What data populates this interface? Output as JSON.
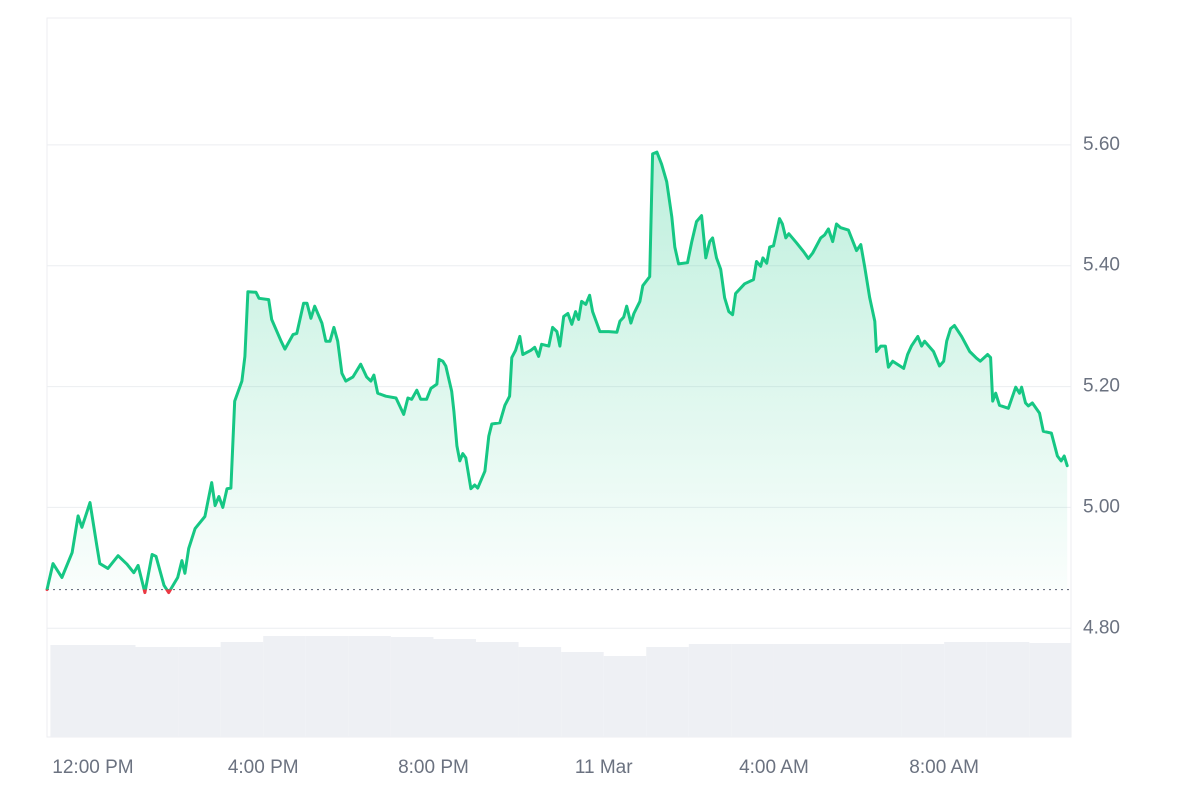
{
  "chart_data": {
    "type": "line",
    "color": "#16c784",
    "below_color": "#ea3943",
    "baseline": 4.864,
    "grid": true,
    "xlim": [
      -1.08,
      22.98
    ],
    "xticks": [
      {
        "value": 0,
        "label": "12:00 PM"
      },
      {
        "value": 4,
        "label": "4:00 PM"
      },
      {
        "value": 8,
        "label": "8:00 PM"
      },
      {
        "value": 12,
        "label": "11 Mar"
      },
      {
        "value": 16,
        "label": "4:00 AM"
      },
      {
        "value": 20,
        "label": "8:00 AM"
      }
    ],
    "ylim": [
      4.62,
      5.81
    ],
    "yticks": [
      {
        "value": 4.8,
        "label": "4.80"
      },
      {
        "value": 5.0,
        "label": "5.00"
      },
      {
        "value": 5.2,
        "label": "5.20"
      },
      {
        "value": 5.4,
        "label": "5.40"
      },
      {
        "value": 5.6,
        "label": "5.60"
      }
    ],
    "x": [
      -1.08,
      -0.94,
      -0.73,
      -0.49,
      -0.35,
      -0.26,
      -0.07,
      0.09,
      0.16,
      0.35,
      0.59,
      0.8,
      0.96,
      1.06,
      1.22,
      1.39,
      1.48,
      1.67,
      1.78,
      1.99,
      2.09,
      2.16,
      2.25,
      2.4,
      2.63,
      2.79,
      2.87,
      2.96,
      3.05,
      3.15,
      3.24,
      3.33,
      3.5,
      3.57,
      3.64,
      3.83,
      3.9,
      4.13,
      4.2,
      4.42,
      4.51,
      4.7,
      4.79,
      4.95,
      5.03,
      5.12,
      5.21,
      5.38,
      5.47,
      5.57,
      5.66,
      5.75,
      5.85,
      5.94,
      6.11,
      6.29,
      6.43,
      6.53,
      6.6,
      6.69,
      6.88,
      7.12,
      7.3,
      7.4,
      7.49,
      7.61,
      7.7,
      7.84,
      7.94,
      8.08,
      8.13,
      8.22,
      8.29,
      8.43,
      8.48,
      8.55,
      8.62,
      8.69,
      8.76,
      8.88,
      8.97,
      9.04,
      9.21,
      9.3,
      9.37,
      9.56,
      9.68,
      9.79,
      9.84,
      9.93,
      10.03,
      10.1,
      10.29,
      10.38,
      10.47,
      10.54,
      10.71,
      10.8,
      10.9,
      10.97,
      11.06,
      11.16,
      11.25,
      11.34,
      11.41,
      11.48,
      11.58,
      11.67,
      11.74,
      11.91,
      12.12,
      12.31,
      12.38,
      12.47,
      12.54,
      12.64,
      12.71,
      12.85,
      12.92,
      13.08,
      13.15,
      13.25,
      13.36,
      13.48,
      13.6,
      13.67,
      13.76,
      13.97,
      14.07,
      14.18,
      14.3,
      14.4,
      14.49,
      14.56,
      14.65,
      14.75,
      14.84,
      14.94,
      15.03,
      15.1,
      15.31,
      15.52,
      15.59,
      15.69,
      15.74,
      15.83,
      15.9,
      15.99,
      16.13,
      16.2,
      16.28,
      16.35,
      16.53,
      16.7,
      16.81,
      16.91,
      17.1,
      17.19,
      17.28,
      17.38,
      17.47,
      17.57,
      17.75,
      17.94,
      18.04,
      18.13,
      18.25,
      18.37,
      18.41,
      18.51,
      18.62,
      18.69,
      18.79,
      19.05,
      19.14,
      19.23,
      19.38,
      19.47,
      19.54,
      19.75,
      19.89,
      19.99,
      20.06,
      20.15,
      20.24,
      20.41,
      20.6,
      20.76,
      20.85,
      21.02,
      21.09,
      21.14,
      21.21,
      21.3,
      21.51,
      21.68,
      21.77,
      21.82,
      21.91,
      21.98,
      22.07,
      22.24,
      22.33,
      22.52,
      22.66,
      22.75,
      22.82,
      22.89
    ],
    "values": [
      4.864,
      4.907,
      4.884,
      4.925,
      4.986,
      4.967,
      5.008,
      4.937,
      4.907,
      4.899,
      4.92,
      4.906,
      4.892,
      4.904,
      4.859,
      4.922,
      4.919,
      4.871,
      4.859,
      4.884,
      4.912,
      4.891,
      4.932,
      4.965,
      4.985,
      5.041,
      5.003,
      5.018,
      5.0,
      5.031,
      5.032,
      5.176,
      5.209,
      5.25,
      5.357,
      5.356,
      5.346,
      5.344,
      5.311,
      5.275,
      5.262,
      5.286,
      5.288,
      5.338,
      5.338,
      5.313,
      5.333,
      5.305,
      5.275,
      5.275,
      5.298,
      5.275,
      5.222,
      5.209,
      5.216,
      5.237,
      5.216,
      5.209,
      5.219,
      5.189,
      5.184,
      5.181,
      5.154,
      5.181,
      5.179,
      5.194,
      5.179,
      5.179,
      5.197,
      5.204,
      5.245,
      5.242,
      5.234,
      5.192,
      5.159,
      5.102,
      5.077,
      5.089,
      5.082,
      5.031,
      5.037,
      5.032,
      5.06,
      5.118,
      5.138,
      5.14,
      5.169,
      5.184,
      5.248,
      5.26,
      5.283,
      5.253,
      5.26,
      5.265,
      5.25,
      5.27,
      5.267,
      5.298,
      5.291,
      5.267,
      5.316,
      5.321,
      5.303,
      5.324,
      5.311,
      5.341,
      5.336,
      5.351,
      5.324,
      5.291,
      5.291,
      5.29,
      5.308,
      5.315,
      5.333,
      5.305,
      5.321,
      5.341,
      5.367,
      5.382,
      5.585,
      5.588,
      5.568,
      5.539,
      5.481,
      5.431,
      5.403,
      5.405,
      5.44,
      5.473,
      5.483,
      5.413,
      5.44,
      5.446,
      5.413,
      5.394,
      5.347,
      5.324,
      5.319,
      5.354,
      5.37,
      5.377,
      5.407,
      5.399,
      5.413,
      5.404,
      5.431,
      5.433,
      5.478,
      5.469,
      5.446,
      5.453,
      5.438,
      5.423,
      5.412,
      5.421,
      5.446,
      5.451,
      5.461,
      5.44,
      5.469,
      5.463,
      5.459,
      5.425,
      5.435,
      5.399,
      5.347,
      5.308,
      5.258,
      5.267,
      5.267,
      5.232,
      5.242,
      5.23,
      5.253,
      5.267,
      5.283,
      5.267,
      5.275,
      5.258,
      5.234,
      5.242,
      5.275,
      5.296,
      5.301,
      5.283,
      5.258,
      5.247,
      5.242,
      5.253,
      5.248,
      5.176,
      5.189,
      5.169,
      5.164,
      5.199,
      5.189,
      5.199,
      5.173,
      5.168,
      5.173,
      5.156,
      5.126,
      5.123,
      5.085,
      5.077,
      5.085,
      5.069
    ],
    "volume": {
      "color": "#eef0f4",
      "x": [
        -1,
        0,
        1,
        2,
        3,
        4,
        5,
        6,
        7,
        8,
        9,
        10,
        11,
        12,
        13,
        14,
        15,
        16,
        17,
        18,
        19,
        20,
        21,
        22
      ],
      "values": [
        92,
        92,
        90,
        90,
        95,
        101,
        101,
        101,
        100,
        98,
        95,
        90,
        85,
        81,
        90,
        93,
        93,
        93,
        93,
        93,
        93,
        95,
        95,
        94
      ]
    }
  }
}
